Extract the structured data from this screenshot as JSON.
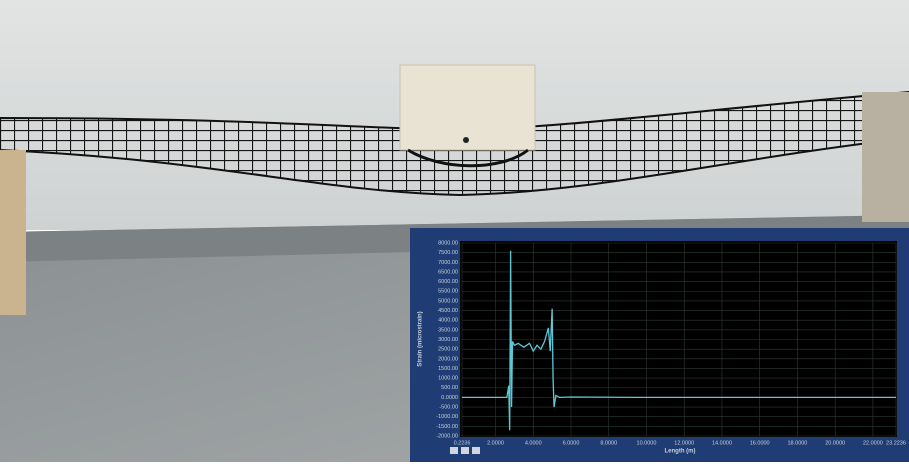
{
  "chart_data": {
    "type": "line",
    "x_label": "Length (m)",
    "y_label": "Strain (microstrain)",
    "xlim": [
      0.2236,
      23.2236
    ],
    "xticks": [
      {
        "value": 0.2236,
        "label": "0.2236"
      },
      {
        "value": 2,
        "label": "2.0000"
      },
      {
        "value": 4,
        "label": "4.0000"
      },
      {
        "value": 6,
        "label": "6.0000"
      },
      {
        "value": 8,
        "label": "8.0000"
      },
      {
        "value": 10,
        "label": "10.0000"
      },
      {
        "value": 12,
        "label": "12.0000"
      },
      {
        "value": 14,
        "label": "14.0000"
      },
      {
        "value": 16,
        "label": "16.0000"
      },
      {
        "value": 18,
        "label": "18.0000"
      },
      {
        "value": 20,
        "label": "20.0000"
      },
      {
        "value": 22,
        "label": "22.0000"
      },
      {
        "value": 23.2236,
        "label": "23.2236"
      }
    ],
    "ylim": [
      -2000,
      8000
    ],
    "yticks": [
      {
        "value": 8000,
        "label": "8000.00"
      },
      {
        "value": 7500,
        "label": "7500.00"
      },
      {
        "value": 7000,
        "label": "7000.00"
      },
      {
        "value": 6500,
        "label": "6500.00"
      },
      {
        "value": 6000,
        "label": "6000.00"
      },
      {
        "value": 5500,
        "label": "5500.00"
      },
      {
        "value": 5000,
        "label": "5000.00"
      },
      {
        "value": 4500,
        "label": "4500.00"
      },
      {
        "value": 4000,
        "label": "4000.00"
      },
      {
        "value": 3500,
        "label": "3500.00"
      },
      {
        "value": 3000,
        "label": "3000.00"
      },
      {
        "value": 2500,
        "label": "2500.00"
      },
      {
        "value": 2000,
        "label": "2000.00"
      },
      {
        "value": 1500,
        "label": "1500.00"
      },
      {
        "value": 1000,
        "label": "1000.00"
      },
      {
        "value": 500,
        "label": "500.00"
      },
      {
        "value": 0,
        "label": "0.0000"
      },
      {
        "value": -500,
        "label": "-500.00"
      },
      {
        "value": -1000,
        "label": "-1000.00"
      },
      {
        "value": -1500,
        "label": "-1500.00"
      },
      {
        "value": -2000,
        "label": "-2000.00"
      }
    ],
    "grid": true,
    "series": [
      {
        "color": "#5cc8d6",
        "x": [
          0.2236,
          2.6,
          2.7,
          2.75,
          2.8,
          2.85,
          2.9,
          3.0,
          3.2,
          3.5,
          3.8,
          4.0,
          4.2,
          4.4,
          4.6,
          4.8,
          4.9,
          5.0,
          5.05,
          5.1,
          5.2,
          5.4,
          6.0,
          10,
          23.2236
        ],
        "values": [
          0,
          0,
          600,
          -1700,
          7600,
          -500,
          2900,
          2700,
          2800,
          2600,
          2800,
          2400,
          2700,
          2500,
          2900,
          3600,
          2400,
          4600,
          1000,
          -500,
          100,
          0,
          20,
          0,
          0
        ]
      }
    ]
  }
}
